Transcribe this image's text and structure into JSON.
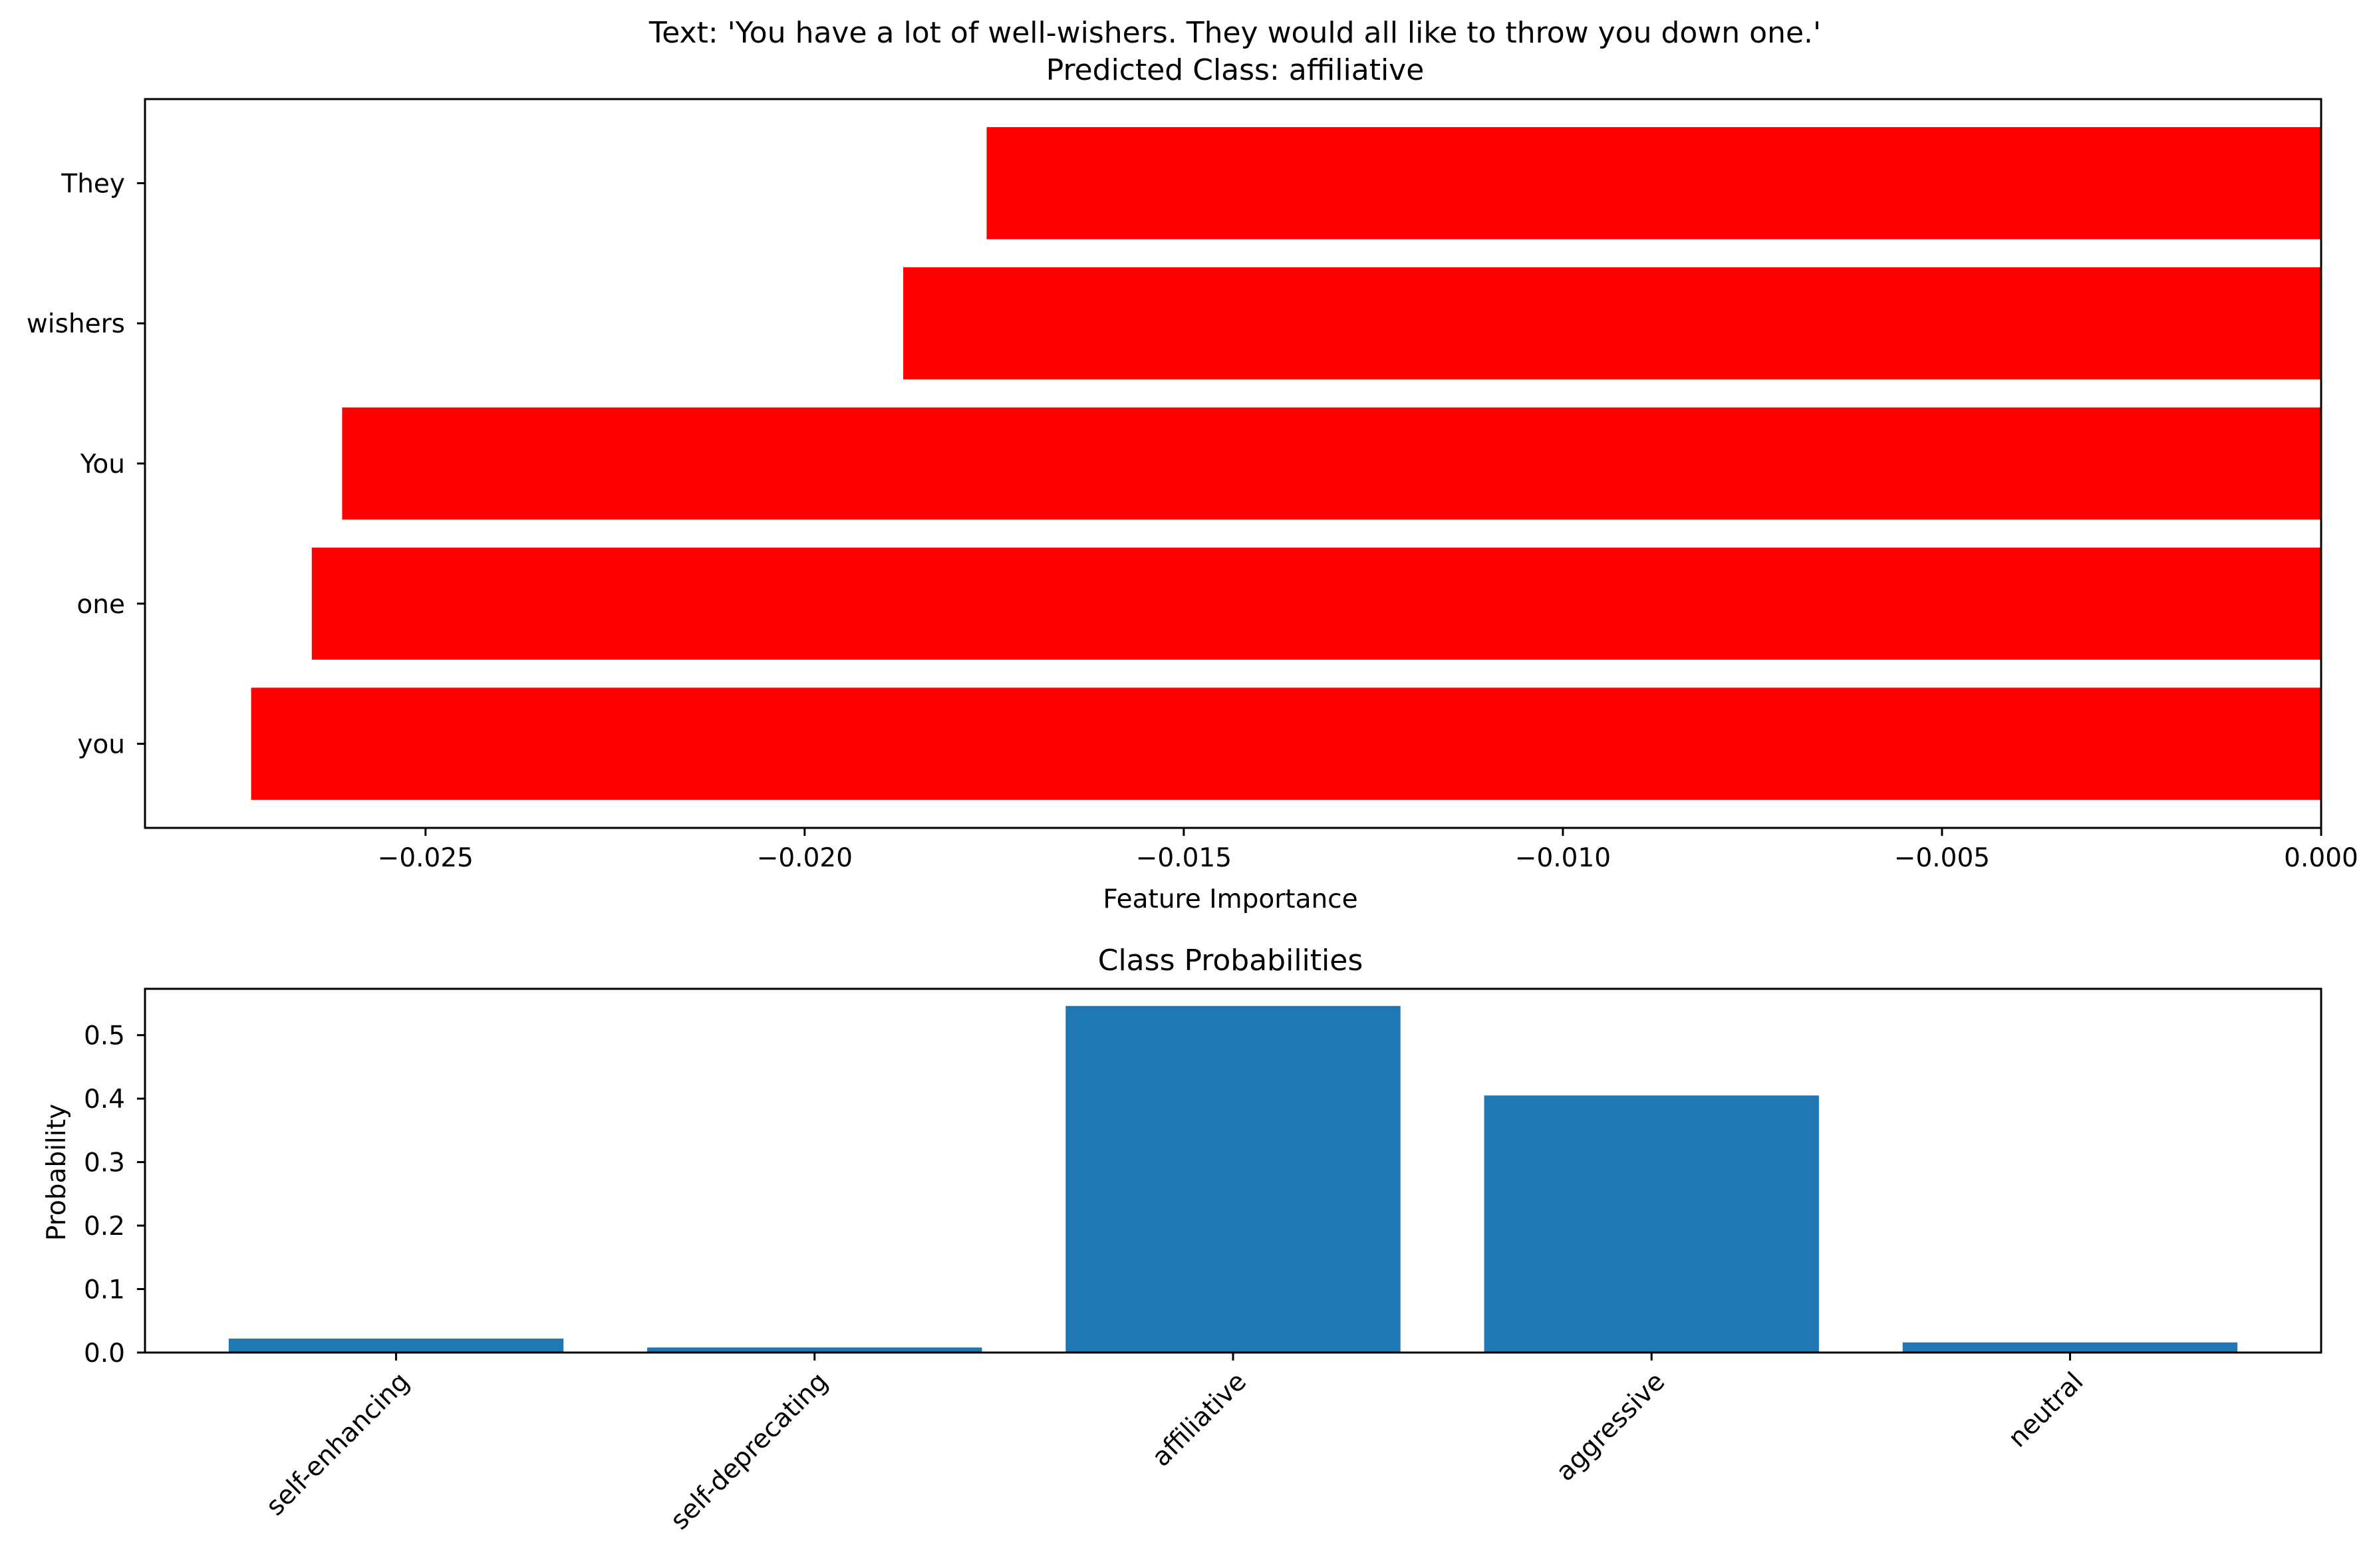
{
  "chart_data": [
    {
      "type": "bar",
      "orientation": "horizontal",
      "title_line1": "Text: 'You have a lot of well-wishers. They would all like to throw you down one.'",
      "title_line2": "Predicted Class: affiliative",
      "xlabel": "Feature Importance",
      "ylabel": "",
      "categories": [
        "you",
        "one",
        "You",
        "wishers",
        "They"
      ],
      "values": [
        -0.0273,
        -0.0265,
        -0.0261,
        -0.0187,
        -0.0176
      ],
      "xlim": [
        -0.0287,
        0.0
      ],
      "xticks": [
        -0.025,
        -0.02,
        -0.015,
        -0.01,
        -0.005,
        0.0
      ],
      "xtick_labels": [
        "−0.025",
        "−0.020",
        "−0.015",
        "−0.010",
        "−0.005",
        "0.000"
      ],
      "bar_color": "#ff0000",
      "grid": false
    },
    {
      "type": "bar",
      "orientation": "vertical",
      "title": "Class Probabilities",
      "xlabel": "",
      "ylabel": "Probability",
      "categories": [
        "self-enhancing",
        "self-deprecating",
        "affiliative",
        "aggressive",
        "neutral"
      ],
      "values": [
        0.022,
        0.008,
        0.546,
        0.405,
        0.016
      ],
      "ylim": [
        0.0,
        0.573
      ],
      "yticks": [
        0.0,
        0.1,
        0.2,
        0.3,
        0.4,
        0.5
      ],
      "ytick_labels": [
        "0.0",
        "0.1",
        "0.2",
        "0.3",
        "0.4",
        "0.5"
      ],
      "bar_color": "#1f77b4",
      "grid": false
    }
  ]
}
